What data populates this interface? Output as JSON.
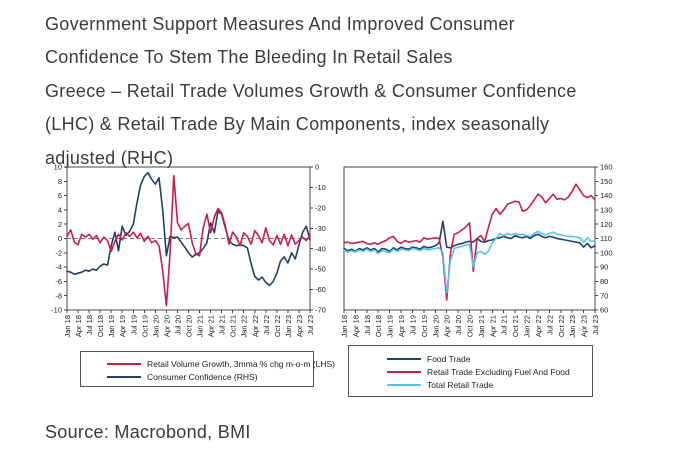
{
  "header": {
    "title_lines": [
      "Government Support Measures And Improved Consumer",
      "Confidence To Stem The Bleeding In Retail Sales"
    ],
    "subtitle_lines": [
      "Greece – Retail Trade Volumes Growth & Consumer Confidence",
      "(LHC) & Retail Trade By Main Components, index seasonally",
      "adjusted (RHC)"
    ]
  },
  "source": "Source: Macrobond, BMI",
  "colors": {
    "crimson": "#C71F4B",
    "navy": "#1F4068",
    "sky": "#56C4E9",
    "axis": "#444444",
    "zero_line": "#777777",
    "text": "#3B3B3B"
  },
  "chart_data": [
    {
      "type": "line",
      "categories": [
        "Jan 18",
        "Feb 18",
        "Mar 18",
        "Apr 18",
        "May 18",
        "Jun 18",
        "Jul 18",
        "Aug 18",
        "Sep 18",
        "Oct 18",
        "Nov 18",
        "Dec 18",
        "Jan 19",
        "Feb 19",
        "Mar 19",
        "Apr 19",
        "May 19",
        "Jun 19",
        "Jul 19",
        "Aug 19",
        "Sep 19",
        "Oct 19",
        "Nov 19",
        "Dec 19",
        "Jan 20",
        "Feb 20",
        "Mar 20",
        "Apr 20",
        "May 20",
        "Jun 20",
        "Jul 20",
        "Aug 20",
        "Sep 20",
        "Oct 20",
        "Nov 20",
        "Dec 20",
        "Jan 21",
        "Feb 21",
        "Mar 21",
        "Apr 21",
        "May 21",
        "Jun 21",
        "Jul 21",
        "Aug 21",
        "Sep 21",
        "Oct 21",
        "Nov 21",
        "Dec 21",
        "Jan 22",
        "Feb 22",
        "Mar 22",
        "Apr 22",
        "May 22",
        "Jun 22",
        "Jul 22",
        "Aug 22",
        "Sep 22",
        "Oct 22",
        "Nov 22",
        "Dec 22",
        "Jan 23",
        "Feb 23",
        "Mar 23",
        "Apr 23",
        "May 23",
        "Jun 23",
        "Jul 23"
      ],
      "x_tick_every": 3,
      "left_axis": {
        "min": -10,
        "max": 10,
        "step": 2
      },
      "right_axis": {
        "min": -70,
        "max": 0,
        "step": 10
      },
      "zero_line": "dashed",
      "legend_position": "bottom",
      "series": [
        {
          "name": "Retail Volume Growth, 3mma % chg m-o-m (LHS)",
          "axis": "left",
          "color": "#C71F4B",
          "values": [
            0.3,
            1.2,
            -0.5,
            -0.9,
            0.6,
            0.2,
            0.6,
            -0.1,
            0.4,
            -0.6,
            0.2,
            -0.3,
            -1.8,
            -0.4,
            0.6,
            -0.2,
            0.8,
            0.3,
            0.9,
            0.1,
            0.7,
            -0.4,
            0.3,
            -0.6,
            -0.3,
            -1.0,
            -4.5,
            -9.4,
            -2.0,
            8.8,
            2.2,
            1.2,
            1.7,
            2.1,
            -0.6,
            -2.2,
            -2.4,
            1.5,
            3.4,
            0.8,
            3.0,
            4.2,
            3.6,
            1.8,
            -0.8,
            0.9,
            0.2,
            -1.0,
            0.8,
            0.3,
            -0.8,
            1.1,
            0.4,
            -0.6,
            1.5,
            -0.3,
            -0.9,
            0.4,
            -0.8,
            0.6,
            -1.0,
            0.5,
            -0.8,
            -0.3,
            0.2,
            -0.3,
            0.4
          ]
        },
        {
          "name": "Consumer Confidence (RHS)",
          "axis": "right",
          "color": "#1F4068",
          "values": [
            -51.0,
            -51.5,
            -52.5,
            -52.0,
            -51.5,
            -50.5,
            -51.0,
            -50.0,
            -50.5,
            -48.5,
            -47.5,
            -48.0,
            -38.5,
            -31.9,
            -41.0,
            -29.0,
            -33.5,
            -31.5,
            -28.0,
            -17.5,
            -8.8,
            -4.6,
            -2.8,
            -6.0,
            -8.4,
            -5.3,
            -21.0,
            -43.4,
            -34.0,
            -34.5,
            -34.3,
            -36.8,
            -39.2,
            -42.0,
            -44.1,
            -42.7,
            -42.0,
            -39.9,
            -37.1,
            -27.3,
            -32.2,
            -21.7,
            -23.1,
            -29.8,
            -36.1,
            -37.8,
            -38.5,
            -38.2,
            -38.5,
            -39.6,
            -47.3,
            -53.6,
            -55.3,
            -53.9,
            -56.5,
            -58.0,
            -56.0,
            -52.0,
            -46.0,
            -44.0,
            -47.0,
            -42.0,
            -45.0,
            -38.0,
            -32.0,
            -29.0,
            -35.5
          ]
        }
      ]
    },
    {
      "type": "line",
      "categories": [
        "Jan 18",
        "Feb 18",
        "Mar 18",
        "Apr 18",
        "May 18",
        "Jun 18",
        "Jul 18",
        "Aug 18",
        "Sep 18",
        "Oct 18",
        "Nov 18",
        "Dec 18",
        "Jan 19",
        "Feb 19",
        "Mar 19",
        "Apr 19",
        "May 19",
        "Jun 19",
        "Jul 19",
        "Aug 19",
        "Sep 19",
        "Oct 19",
        "Nov 19",
        "Dec 19",
        "Jan 20",
        "Feb 20",
        "Mar 20",
        "Apr 20",
        "May 20",
        "Jun 20",
        "Jul 20",
        "Aug 20",
        "Sep 20",
        "Oct 20",
        "Nov 20",
        "Dec 20",
        "Jan 21",
        "Feb 21",
        "Mar 21",
        "Apr 21",
        "May 21",
        "Jun 21",
        "Jul 21",
        "Aug 21",
        "Sep 21",
        "Oct 21",
        "Nov 21",
        "Dec 21",
        "Jan 22",
        "Feb 22",
        "Mar 22",
        "Apr 22",
        "May 22",
        "Jun 22",
        "Jul 22",
        "Aug 22",
        "Sep 22",
        "Oct 22",
        "Nov 22",
        "Dec 22",
        "Jan 23",
        "Feb 23",
        "Mar 23",
        "Apr 23",
        "May 23",
        "Jun 23",
        "Jul 23"
      ],
      "x_tick_every": 3,
      "right_axis": {
        "min": 60,
        "max": 160,
        "step": 10
      },
      "legend_position": "bottom",
      "series": [
        {
          "name": "Food Trade",
          "axis": "right",
          "color": "#1F4068",
          "values": [
            103,
            101.5,
            102.5,
            101,
            103,
            102,
            103.5,
            102,
            103,
            100.5,
            103,
            102.5,
            101,
            103.5,
            102,
            104,
            103,
            102.5,
            104,
            103.5,
            102.5,
            104.5,
            103.5,
            104,
            105,
            107,
            122,
            104,
            103.5,
            105,
            106,
            106.5,
            107.5,
            108,
            107.5,
            110,
            108,
            107.5,
            108.5,
            109,
            110,
            110.5,
            111.5,
            110.5,
            110,
            112,
            111,
            110.5,
            111.5,
            110,
            112,
            113,
            111.5,
            110.5,
            111.5,
            111,
            110,
            109.5,
            109,
            108.5,
            108,
            107.5,
            107,
            104,
            106.5,
            103.5,
            105
          ]
        },
        {
          "name": "Retail Trade Excluding Fuel And Food",
          "axis": "right",
          "color": "#C71F4B",
          "values": [
            107,
            107.5,
            106.5,
            107,
            107.5,
            108,
            106.5,
            106,
            107,
            106,
            107.5,
            108.5,
            110.5,
            111.5,
            108,
            106.5,
            108.5,
            107.5,
            108,
            108.5,
            107.5,
            110.5,
            109.5,
            110,
            110.5,
            110,
            97,
            67,
            100,
            113,
            114,
            116,
            118,
            121,
            87,
            110,
            112,
            108,
            118,
            127,
            131,
            127,
            130,
            134,
            135,
            136,
            135.5,
            129,
            130,
            133,
            137,
            141,
            139,
            135,
            138,
            141,
            137.5,
            138,
            137,
            139,
            143,
            148,
            144,
            140,
            138.5,
            140,
            137
          ]
        },
        {
          "name": "Total Retail Trade",
          "axis": "right",
          "color": "#56C4E9",
          "values": [
            102,
            100.5,
            101.5,
            100.5,
            102,
            101,
            102.5,
            101,
            102,
            99.5,
            101.5,
            101,
            100,
            102.5,
            101,
            102.5,
            102,
            101.5,
            103,
            102.5,
            101.5,
            103,
            102,
            102.5,
            103,
            103.5,
            100,
            72,
            95,
            103,
            104,
            104.5,
            105.5,
            106,
            90,
            100,
            101,
            99,
            101,
            107,
            110,
            113.5,
            112,
            113.5,
            112.5,
            113.5,
            112.5,
            113,
            112,
            111.5,
            113.5,
            115,
            113.5,
            112.5,
            113.5,
            114.5,
            113,
            112.5,
            112,
            111.5,
            111.5,
            111,
            110.5,
            107.5,
            110.5,
            108,
            108.5
          ]
        }
      ]
    }
  ]
}
